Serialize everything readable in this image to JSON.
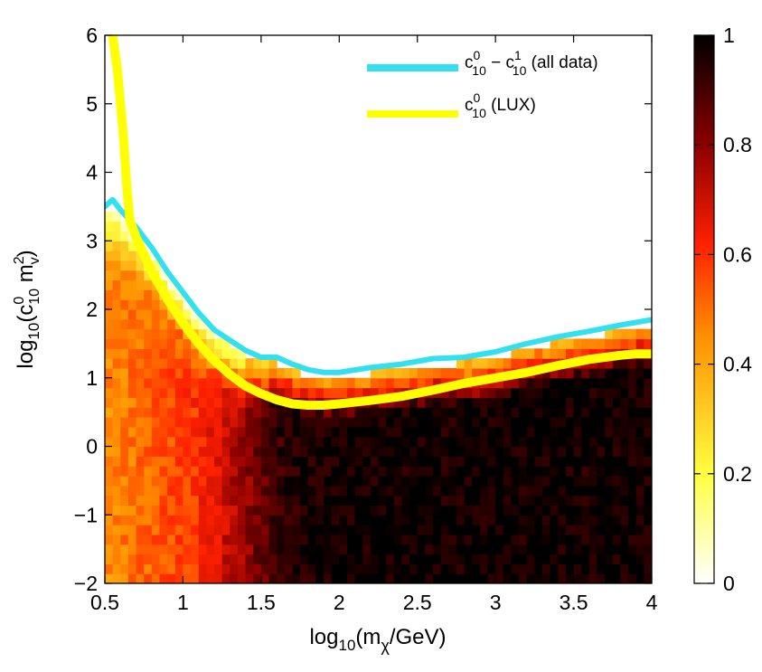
{
  "chart_data": {
    "type": "heatmap",
    "title": "",
    "xlabel": {
      "prefix": "log",
      "sub1": "10",
      "mid": "(m",
      "sub2": "χ",
      "suffix": "/GeV)"
    },
    "ylabel": {
      "prefix": "log",
      "sub1": "10",
      "mid": "(c",
      "sup1": "0",
      "sub2": "10",
      "mid2": " m",
      "sup2": "2",
      "sub3": "v",
      "suffix": ")"
    },
    "xlim": [
      0.5,
      4
    ],
    "ylim": [
      -2,
      6
    ],
    "xticks": [
      0.5,
      1,
      1.5,
      2,
      2.5,
      3,
      3.5,
      4
    ],
    "xtick_labels": [
      "0.5",
      "1",
      "1.5",
      "2",
      "2.5",
      "3",
      "3.5",
      "4"
    ],
    "yticks": [
      -2,
      -1,
      0,
      1,
      2,
      3,
      4,
      5,
      6
    ],
    "ytick_labels": [
      "−2",
      "−1",
      "0",
      "1",
      "2",
      "3",
      "4",
      "5",
      "6"
    ],
    "colorbar": {
      "range": [
        0,
        1
      ],
      "ticks": [
        0,
        0.2,
        0.4,
        0.6,
        0.8,
        1
      ],
      "tick_labels": [
        "0",
        "0.2",
        "0.4",
        "0.6",
        "0.8",
        "1"
      ],
      "colormap": "hot (inverted)"
    },
    "heatmap": {
      "description": "profile likelihood, filled below the all-data boundary",
      "upper_boundary": {
        "x": [
          0.5,
          0.55,
          0.6,
          0.7,
          0.8,
          0.9,
          1.0,
          1.1,
          1.2,
          1.3,
          1.4,
          1.5,
          1.6,
          1.7,
          1.8,
          1.9,
          2.0,
          2.2,
          2.4,
          2.6,
          2.8,
          3.0,
          3.2,
          3.4,
          3.6,
          3.8,
          4.0
        ],
        "y": [
          3.5,
          3.6,
          3.45,
          3.2,
          2.9,
          2.55,
          2.25,
          1.95,
          1.7,
          1.55,
          1.4,
          1.3,
          1.3,
          1.2,
          1.12,
          1.08,
          1.08,
          1.15,
          1.2,
          1.28,
          1.3,
          1.38,
          1.5,
          1.6,
          1.68,
          1.77,
          1.85
        ]
      },
      "core_x": [
        0.5,
        0.7,
        0.9,
        1.1,
        1.3,
        1.5,
        1.65,
        1.8,
        2.0,
        4.0
      ],
      "core_level": [
        0.45,
        0.5,
        0.55,
        0.6,
        0.72,
        0.85,
        0.95,
        0.97,
        0.98,
        0.98
      ]
    },
    "series": [
      {
        "name": "c10^0 − c10^1 (all data)",
        "color": "#33e0f0",
        "x": [
          0.5,
          0.55,
          0.6,
          0.7,
          0.8,
          0.9,
          1.0,
          1.1,
          1.2,
          1.3,
          1.4,
          1.5,
          1.6,
          1.7,
          1.8,
          1.9,
          2.0,
          2.2,
          2.4,
          2.6,
          2.8,
          3.0,
          3.2,
          3.4,
          3.6,
          3.8,
          4.0
        ],
        "y": [
          3.5,
          3.6,
          3.45,
          3.2,
          2.9,
          2.55,
          2.25,
          1.95,
          1.7,
          1.55,
          1.4,
          1.3,
          1.3,
          1.2,
          1.12,
          1.08,
          1.08,
          1.15,
          1.2,
          1.28,
          1.3,
          1.38,
          1.5,
          1.6,
          1.68,
          1.77,
          1.85
        ]
      },
      {
        "name": "c10^0 (LUX)",
        "color": "#ffff00",
        "x": [
          0.55,
          0.58,
          0.6,
          0.62,
          0.64,
          0.66,
          0.7,
          0.8,
          0.9,
          1.0,
          1.1,
          1.2,
          1.3,
          1.4,
          1.5,
          1.6,
          1.7,
          1.8,
          1.9,
          2.0,
          2.2,
          2.4,
          2.6,
          2.8,
          3.0,
          3.2,
          3.4,
          3.6,
          3.8,
          3.9,
          4.0
        ],
        "y": [
          6.0,
          5.5,
          5.0,
          4.5,
          3.8,
          3.3,
          3.05,
          2.55,
          2.15,
          1.8,
          1.5,
          1.25,
          1.05,
          0.88,
          0.77,
          0.68,
          0.62,
          0.6,
          0.6,
          0.62,
          0.67,
          0.73,
          0.82,
          0.92,
          1.0,
          1.08,
          1.18,
          1.27,
          1.33,
          1.35,
          1.35
        ]
      }
    ],
    "legend": {
      "placement": "top-right",
      "entries": [
        {
          "base1": "c",
          "sup1": "0",
          "sub1": "10",
          "sep": " − ",
          "base2": "c",
          "sup2": "1",
          "sub2": "10",
          "tail": " (all data)",
          "color": "#33e0f0"
        },
        {
          "base1": "c",
          "sup1": "0",
          "sub1": "10",
          "tail": " (LUX)",
          "color": "#ffff00"
        }
      ]
    }
  }
}
